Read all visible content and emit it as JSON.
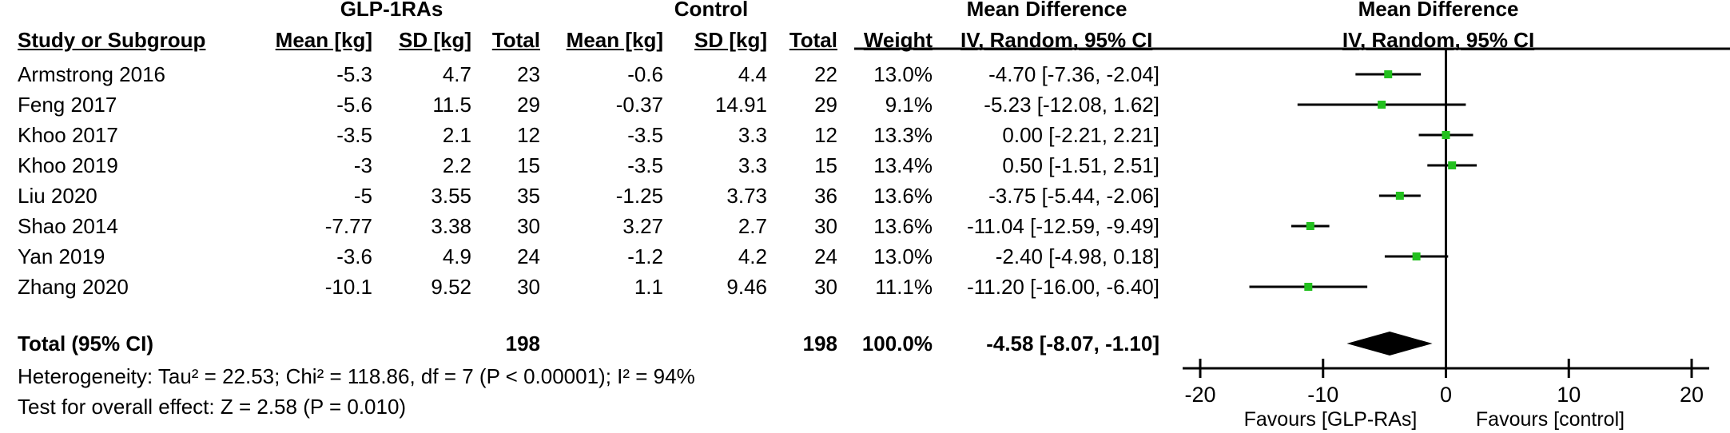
{
  "headers": {
    "group1": "GLP-1RAs",
    "group2": "Control",
    "md_group": "Mean Difference",
    "md_plot": "Mean Difference",
    "study": "Study or Subgroup",
    "mean1": "Mean [kg]",
    "sd1": "SD [kg]",
    "total1": "Total",
    "mean2": "Mean [kg]",
    "sd2": "SD [kg]",
    "total2": "Total",
    "weight": "Weight",
    "md_sub": "IV, Random, 95% CI",
    "plot_sub": "IV, Random, 95% CI"
  },
  "rows": [
    {
      "study": "Armstrong 2016",
      "mean1": "-5.3",
      "sd1": "4.7",
      "total1": "23",
      "mean2": "-0.6",
      "sd2": "4.4",
      "total2": "22",
      "weight": "13.0%",
      "ci": "-4.70 [-7.36, -2.04]"
    },
    {
      "study": "Feng 2017",
      "mean1": "-5.6",
      "sd1": "11.5",
      "total1": "29",
      "mean2": "-0.37",
      "sd2": "14.91",
      "total2": "29",
      "weight": "9.1%",
      "ci": "-5.23 [-12.08, 1.62]"
    },
    {
      "study": "Khoo 2017",
      "mean1": "-3.5",
      "sd1": "2.1",
      "total1": "12",
      "mean2": "-3.5",
      "sd2": "3.3",
      "total2": "12",
      "weight": "13.3%",
      "ci": "0.00 [-2.21, 2.21]"
    },
    {
      "study": "Khoo 2019",
      "mean1": "-3",
      "sd1": "2.2",
      "total1": "15",
      "mean2": "-3.5",
      "sd2": "3.3",
      "total2": "15",
      "weight": "13.4%",
      "ci": "0.50 [-1.51, 2.51]"
    },
    {
      "study": "Liu 2020",
      "mean1": "-5",
      "sd1": "3.55",
      "total1": "35",
      "mean2": "-1.25",
      "sd2": "3.73",
      "total2": "36",
      "weight": "13.6%",
      "ci": "-3.75 [-5.44, -2.06]"
    },
    {
      "study": "Shao 2014",
      "mean1": "-7.77",
      "sd1": "3.38",
      "total1": "30",
      "mean2": "3.27",
      "sd2": "2.7",
      "total2": "30",
      "weight": "13.6%",
      "ci": "-11.04 [-12.59, -9.49]"
    },
    {
      "study": "Yan 2019",
      "mean1": "-3.6",
      "sd1": "4.9",
      "total1": "24",
      "mean2": "-1.2",
      "sd2": "4.2",
      "total2": "24",
      "weight": "13.0%",
      "ci": "-2.40 [-4.98, 0.18]"
    },
    {
      "study": "Zhang 2020",
      "mean1": "-10.1",
      "sd1": "9.52",
      "total1": "30",
      "mean2": "1.1",
      "sd2": "9.46",
      "total2": "30",
      "weight": "11.1%",
      "ci": "-11.20 [-16.00, -6.40]"
    }
  ],
  "total": {
    "label": "Total (95% CI)",
    "total1": "198",
    "total2": "198",
    "weight": "100.0%",
    "ci": "-4.58 [-8.07, -1.10]"
  },
  "heterogeneity": "Heterogeneity: Tau² = 22.53; Chi² = 118.86, df = 7 (P < 0.00001); I² = 94%",
  "overall_effect": "Test for overall effect: Z = 2.58 (P = 0.010)",
  "favours_left": "Favours [GLP-RAs]",
  "favours_right": "Favours [control]",
  "colors": {
    "marker": "#22c01e",
    "line": "#000000",
    "diamond": "#000000"
  },
  "chart_data": {
    "type": "forest",
    "xlim": [
      -20,
      20
    ],
    "ticks": [
      -20,
      -10,
      0,
      10,
      20
    ],
    "tick_labels": [
      "-20",
      "-10",
      "0",
      "10",
      "20"
    ],
    "studies": [
      {
        "name": "Armstrong 2016",
        "md": -4.7,
        "lo": -7.36,
        "hi": -2.04,
        "weight": 13.0
      },
      {
        "name": "Feng 2017",
        "md": -5.23,
        "lo": -12.08,
        "hi": 1.62,
        "weight": 9.1
      },
      {
        "name": "Khoo 2017",
        "md": 0.0,
        "lo": -2.21,
        "hi": 2.21,
        "weight": 13.3
      },
      {
        "name": "Khoo 2019",
        "md": 0.5,
        "lo": -1.51,
        "hi": 2.51,
        "weight": 13.4
      },
      {
        "name": "Liu 2020",
        "md": -3.75,
        "lo": -5.44,
        "hi": -2.06,
        "weight": 13.6
      },
      {
        "name": "Shao 2014",
        "md": -11.04,
        "lo": -12.59,
        "hi": -9.49,
        "weight": 13.6
      },
      {
        "name": "Yan 2019",
        "md": -2.4,
        "lo": -4.98,
        "hi": 0.18,
        "weight": 13.0
      },
      {
        "name": "Zhang 2020",
        "md": -11.2,
        "lo": -16.0,
        "hi": -6.4,
        "weight": 11.1
      }
    ],
    "overall": {
      "md": -4.58,
      "lo": -8.07,
      "hi": -1.1
    }
  }
}
